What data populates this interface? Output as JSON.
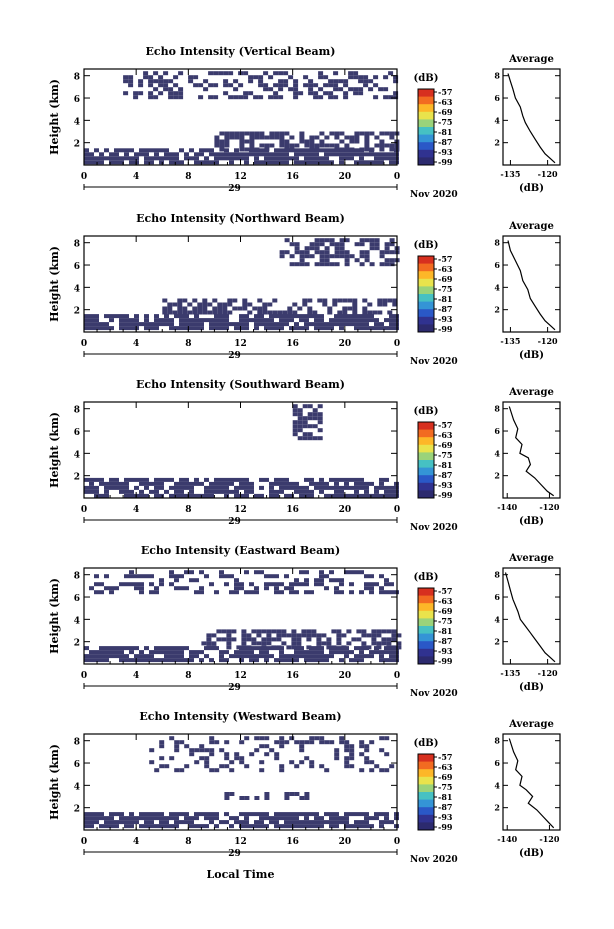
{
  "figure": {
    "ylabel": "Height (km)",
    "xlabel": "Local Time",
    "day_label": "29",
    "month_label": "Nov 2020",
    "colorbar_unit": "(dB)",
    "colorbar_ticks": [
      "-57",
      "-63",
      "-69",
      "-75",
      "-81",
      "-87",
      "-93",
      "-99"
    ],
    "colorbar_colors": [
      "#d7301f",
      "#f26b21",
      "#fdb728",
      "#e9e34c",
      "#9ad37a",
      "#46c1c3",
      "#3494d6",
      "#2a58c7",
      "#303290",
      "#2c2a6e"
    ],
    "echo_color": "#3b3b6d",
    "avg_title": "Average",
    "avg_xlabel": "(dB)",
    "x_ticks": [
      "0",
      "4",
      "8",
      "12",
      "16",
      "20",
      "0"
    ],
    "y_ticks": [
      "2",
      "4",
      "6",
      "8"
    ]
  },
  "panels": [
    {
      "title": "Echo Intensity (Vertical Beam)",
      "avg_xticks": [
        "-135",
        "-120"
      ]
    },
    {
      "title": "Echo Intensity (Northward Beam)",
      "avg_xticks": [
        "-135",
        "-120"
      ]
    },
    {
      "title": "Echo Intensity (Southward Beam)",
      "avg_xticks": [
        "-140",
        "-120"
      ]
    },
    {
      "title": "Echo Intensity (Eastward Beam)",
      "avg_xticks": [
        "-135",
        "-120"
      ]
    },
    {
      "title": "Echo Intensity (Westward Beam)",
      "avg_xticks": [
        "-140",
        "-120"
      ]
    }
  ],
  "chart_data": [
    {
      "type": "heatmap",
      "title": "Echo Intensity (Vertical Beam)",
      "xlabel": "",
      "ylabel": "Height (km)",
      "xlim": [
        0,
        24
      ],
      "ylim": [
        0,
        8.6
      ],
      "zlim": [
        -99,
        -57
      ],
      "zunit": "dB",
      "echo_regions": [
        {
          "x": [
            0,
            24
          ],
          "y": [
            0.4,
            1.5
          ],
          "fill": 0.75
        },
        {
          "x": [
            10,
            24
          ],
          "y": [
            1.5,
            3.0
          ],
          "fill": 0.6
        },
        {
          "x": [
            3,
            24
          ],
          "y": [
            6.0,
            8.4
          ],
          "fill": 0.5
        }
      ]
    },
    {
      "type": "line",
      "title": "Average",
      "xlabel": "(dB)",
      "ylabel": "",
      "xlim": [
        -138,
        -115
      ],
      "ylim": [
        0,
        8.6
      ],
      "series": [
        {
          "x": [
            -136,
            -135,
            -134,
            -133,
            -131,
            -130,
            -129,
            -127,
            -125,
            -123,
            -121,
            -119,
            -117
          ],
          "y": [
            8.2,
            7.5,
            6.8,
            6.0,
            5.2,
            4.4,
            3.8,
            3.0,
            2.3,
            1.6,
            1.0,
            0.6,
            0.2
          ]
        }
      ]
    },
    {
      "type": "heatmap",
      "title": "Echo Intensity (Northward Beam)",
      "xlabel": "",
      "ylabel": "Height (km)",
      "xlim": [
        0,
        24
      ],
      "ylim": [
        0,
        8.6
      ],
      "zlim": [
        -99,
        -57
      ],
      "zunit": "dB",
      "echo_regions": [
        {
          "x": [
            0,
            24
          ],
          "y": [
            0.4,
            1.6
          ],
          "fill": 0.75
        },
        {
          "x": [
            6,
            24
          ],
          "y": [
            1.6,
            3.0
          ],
          "fill": 0.55
        },
        {
          "x": [
            15,
            24
          ],
          "y": [
            6.0,
            8.4
          ],
          "fill": 0.55
        }
      ]
    },
    {
      "type": "line",
      "title": "Average",
      "xlabel": "(dB)",
      "ylabel": "",
      "xlim": [
        -138,
        -115
      ],
      "ylim": [
        0,
        8.6
      ],
      "series": [
        {
          "x": [
            -136,
            -135,
            -133,
            -131,
            -130,
            -128,
            -127,
            -125,
            -123,
            -121,
            -119,
            -117
          ],
          "y": [
            8.2,
            7.3,
            6.4,
            5.5,
            4.6,
            3.8,
            3.0,
            2.3,
            1.6,
            1.0,
            0.6,
            0.2
          ]
        }
      ]
    },
    {
      "type": "heatmap",
      "title": "Echo Intensity (Southward Beam)",
      "xlabel": "",
      "ylabel": "Height (km)",
      "xlim": [
        0,
        24
      ],
      "ylim": [
        0,
        8.6
      ],
      "zlim": [
        -99,
        -57
      ],
      "zunit": "dB",
      "echo_regions": [
        {
          "x": [
            0,
            24
          ],
          "y": [
            0.3,
            1.8
          ],
          "fill": 0.7
        },
        {
          "x": [
            16,
            18
          ],
          "y": [
            5.5,
            8.4
          ],
          "fill": 0.6
        }
      ]
    },
    {
      "type": "line",
      "title": "Average",
      "xlabel": "(dB)",
      "ylabel": "",
      "xlim": [
        -142,
        -115
      ],
      "ylim": [
        0,
        8.6
      ],
      "series": [
        {
          "x": [
            -139,
            -137,
            -135,
            -136,
            -133,
            -134,
            -130,
            -129,
            -131,
            -127,
            -124,
            -121,
            -118
          ],
          "y": [
            8.2,
            7.0,
            6.2,
            5.4,
            4.8,
            4.0,
            3.6,
            3.0,
            2.4,
            1.8,
            1.2,
            0.6,
            0.2
          ]
        }
      ]
    },
    {
      "type": "heatmap",
      "title": "Echo Intensity (Eastward Beam)",
      "xlabel": "",
      "ylabel": "Height (km)",
      "xlim": [
        0,
        24
      ],
      "ylim": [
        0,
        8.6
      ],
      "zlim": [
        -99,
        -57
      ],
      "zunit": "dB",
      "echo_regions": [
        {
          "x": [
            0,
            24
          ],
          "y": [
            0.5,
            1.6
          ],
          "fill": 0.75
        },
        {
          "x": [
            9,
            24
          ],
          "y": [
            1.6,
            3.1
          ],
          "fill": 0.6
        },
        {
          "x": [
            0,
            24
          ],
          "y": [
            6.5,
            8.4
          ],
          "fill": 0.35
        }
      ]
    },
    {
      "type": "line",
      "title": "Average",
      "xlabel": "(dB)",
      "ylabel": "",
      "xlim": [
        -138,
        -115
      ],
      "ylim": [
        0,
        8.6
      ],
      "series": [
        {
          "x": [
            -137,
            -136,
            -135,
            -134,
            -132,
            -131,
            -129,
            -127,
            -125,
            -123,
            -121,
            -119,
            -117
          ],
          "y": [
            8.2,
            7.4,
            6.6,
            5.8,
            4.7,
            4.0,
            3.4,
            2.8,
            2.2,
            1.6,
            1.0,
            0.6,
            0.2
          ]
        }
      ]
    },
    {
      "type": "heatmap",
      "title": "Echo Intensity (Westward Beam)",
      "xlabel": "Local Time",
      "ylabel": "Height (km)",
      "xlim": [
        0,
        24
      ],
      "ylim": [
        0,
        8.6
      ],
      "zlim": [
        -99,
        -57
      ],
      "zunit": "dB",
      "echo_regions": [
        {
          "x": [
            0,
            24
          ],
          "y": [
            0.3,
            1.6
          ],
          "fill": 0.75
        },
        {
          "x": [
            10,
            17
          ],
          "y": [
            2.8,
            3.4
          ],
          "fill": 0.4
        },
        {
          "x": [
            5,
            24
          ],
          "y": [
            5.5,
            8.4
          ],
          "fill": 0.25
        }
      ]
    },
    {
      "type": "line",
      "title": "Average",
      "xlabel": "(dB)",
      "ylabel": "",
      "xlim": [
        -142,
        -115
      ],
      "ylim": [
        0,
        8.6
      ],
      "series": [
        {
          "x": [
            -139,
            -137,
            -135,
            -136,
            -133,
            -134,
            -131,
            -128,
            -130,
            -126,
            -123,
            -120,
            -118
          ],
          "y": [
            8.2,
            7.0,
            6.2,
            5.4,
            4.8,
            4.0,
            3.6,
            3.0,
            2.4,
            1.8,
            1.2,
            0.6,
            0.2
          ]
        }
      ]
    }
  ]
}
